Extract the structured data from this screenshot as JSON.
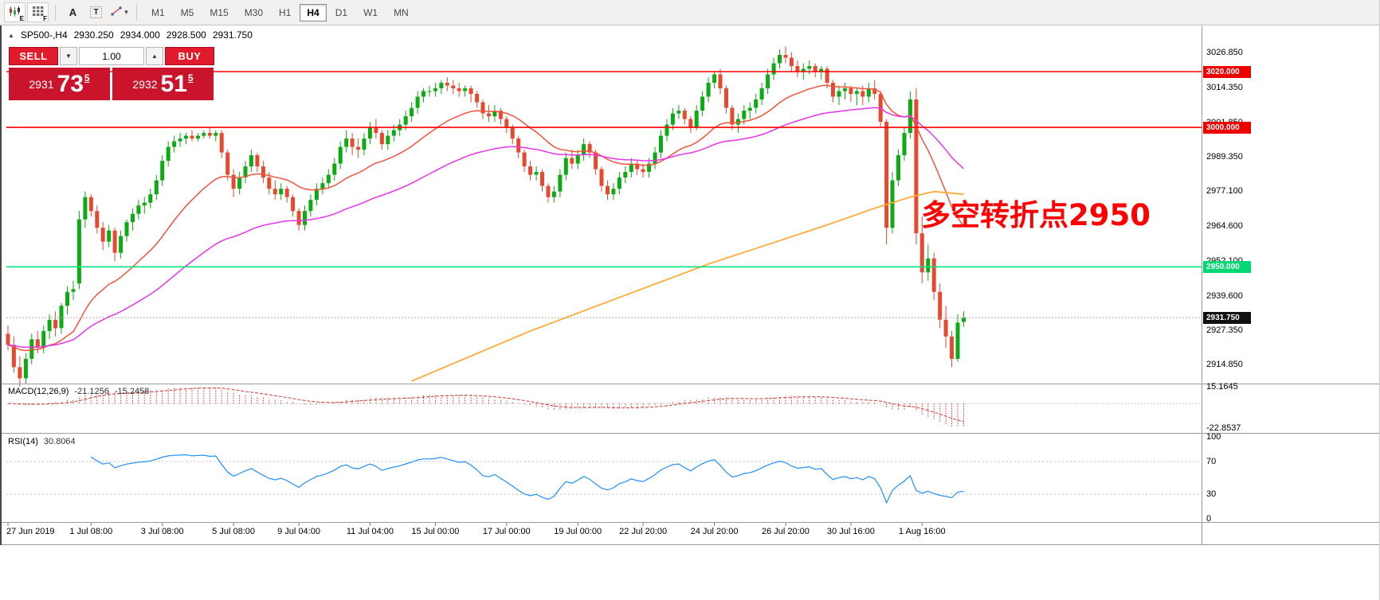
{
  "toolbar": {
    "ea_e": "E",
    "ea_f": "F",
    "label_tool": "A",
    "text_tool": "T",
    "timeframes": [
      {
        "label": "M1",
        "active": false
      },
      {
        "label": "M5",
        "active": false
      },
      {
        "label": "M15",
        "active": false
      },
      {
        "label": "M30",
        "active": false
      },
      {
        "label": "H1",
        "active": false
      },
      {
        "label": "H4",
        "active": true
      },
      {
        "label": "D1",
        "active": false
      },
      {
        "label": "W1",
        "active": false
      },
      {
        "label": "MN",
        "active": false
      }
    ]
  },
  "icons": {
    "marker_up": "▲",
    "caret_down": "▾",
    "caret_down_small": "▼",
    "caret_up_small": "▲"
  },
  "symbol_header": {
    "symbol": "SP500-,H4",
    "open": "2930.250",
    "high": "2934.000",
    "low": "2928.500",
    "close": "2931.750"
  },
  "trade_panel": {
    "sell_label": "SELL",
    "buy_label": "BUY",
    "volume": "1.00",
    "bid_prefix": "2931",
    "bid_big": "73",
    "bid_sup": "5",
    "ask_prefix": "2932",
    "ask_big": "51",
    "ask_sup": "5"
  },
  "chart_data": {
    "type": "candlestick",
    "symbol": "SP500-",
    "timeframe": "H4",
    "current_bar": {
      "open": "2930.250",
      "high": "2934.000",
      "low": "2928.500",
      "close": "2931.750"
    },
    "colors": {
      "up": "#0caa13",
      "down": "#e5492f"
    },
    "price_axis": {
      "labels": [
        [
          3026.85,
          "3026.850"
        ],
        [
          3014.35,
          "3014.350"
        ],
        [
          3001.85,
          "3001.850"
        ],
        [
          2989.35,
          "2989.350"
        ],
        [
          2977.1,
          "2977.100"
        ],
        [
          2964.6,
          "2964.600"
        ],
        [
          2952.1,
          "2952.100"
        ],
        [
          2939.6,
          "2939.600"
        ],
        [
          2927.35,
          "2927.350"
        ],
        [
          2914.85,
          "2914.850"
        ]
      ]
    },
    "levels": [
      {
        "price": 3020,
        "text": "3020.000",
        "line_color": "#ff0000",
        "tag_bg": "#ee0000",
        "tag_color": "#ffffff"
      },
      {
        "price": 3000,
        "text": "3000.000",
        "line_color": "#ff0000",
        "tag_bg": "#ee0000",
        "tag_color": "#ffffff"
      },
      {
        "price": 2950,
        "text": "2950.000",
        "line_color": "#00e27a",
        "tag_bg": "#00d973",
        "tag_color": "#ffffff"
      }
    ],
    "current_price": {
      "price": 2931.75,
      "text": "2931.750",
      "line_color": "#aaaaaa",
      "tag_bg": "#111111",
      "tag_color": "#ffffff"
    },
    "time_labels": [
      [
        0,
        "27 Jun 2019"
      ],
      [
        14,
        "1 Jul 08:00"
      ],
      [
        26,
        "3 Jul 08:00"
      ],
      [
        38,
        "5 Jul 08:00"
      ],
      [
        49,
        "9 Jul 04:00"
      ],
      [
        61,
        "11 Jul 04:00"
      ],
      [
        72,
        "15 Jul 00:00"
      ],
      [
        84,
        "17 Jul 00:00"
      ],
      [
        96,
        "19 Jul 00:00"
      ],
      [
        107,
        "22 Jul 20:00"
      ],
      [
        119,
        "24 Jul 20:00"
      ],
      [
        131,
        "26 Jul 20:00"
      ],
      [
        142,
        "30 Jul 16:00"
      ],
      [
        154,
        "1 Aug 16:00"
      ]
    ],
    "overlays": [
      {
        "name": "ma-fast",
        "type": "ema",
        "period": 21,
        "color": "#f4533a"
      },
      {
        "name": "ma-mid",
        "type": "ema",
        "period": 55,
        "color": "#e833e8"
      },
      {
        "name": "ma-slow",
        "type": "points",
        "color": "#ffaa33",
        "points": [
          [
            68,
            2909
          ],
          [
            78,
            2918
          ],
          [
            88,
            2927
          ],
          [
            98,
            2935
          ],
          [
            108,
            2943
          ],
          [
            118,
            2951
          ],
          [
            128,
            2958
          ],
          [
            138,
            2965
          ],
          [
            146,
            2971
          ],
          [
            152,
            2975
          ],
          [
            156,
            2977
          ],
          [
            161,
            2976
          ]
        ]
      }
    ],
    "macd": {
      "label": "MACD(12,26,9)",
      "fast": 12,
      "slow": 26,
      "signal": 9,
      "value_main": "-21.1256",
      "value_signal": "-15.2458",
      "axis": [
        [
          15.1645,
          "15.1645"
        ],
        [
          -22.8537,
          "-22.8537"
        ]
      ],
      "range": [
        -25,
        17
      ],
      "color": "#d23535"
    },
    "rsi": {
      "label": "RSI(14)",
      "period": 14,
      "value": "30.8064",
      "axis": [
        [
          100,
          "100"
        ],
        [
          70,
          "70"
        ],
        [
          30,
          "30"
        ],
        [
          0,
          "0"
        ]
      ],
      "levels": [
        70,
        30
      ],
      "color": "#1e90ff"
    },
    "annotation": {
      "text": "多空转折点2950",
      "color": "#ff0000"
    },
    "candles": [
      [
        2926,
        2929,
        2920,
        2922
      ],
      [
        2922,
        2925,
        2912,
        2914
      ],
      [
        2914,
        2918,
        2907,
        2910
      ],
      [
        2910,
        2919,
        2908,
        2917
      ],
      [
        2917,
        2926,
        2915,
        2924
      ],
      [
        2924,
        2927,
        2919,
        2921
      ],
      [
        2921,
        2929,
        2919,
        2927
      ],
      [
        2927,
        2933,
        2924,
        2931
      ],
      [
        2931,
        2934,
        2925,
        2928
      ],
      [
        2928,
        2937,
        2926,
        2936
      ],
      [
        2936,
        2943,
        2933,
        2941
      ],
      [
        2941,
        2945,
        2938,
        2942
      ],
      [
        2944,
        2970,
        2942,
        2967
      ],
      [
        2967,
        2977,
        2964,
        2975
      ],
      [
        2975,
        2976,
        2968,
        2970
      ],
      [
        2970,
        2972,
        2962,
        2964
      ],
      [
        2964,
        2966,
        2956,
        2959
      ],
      [
        2959,
        2965,
        2957,
        2963
      ],
      [
        2963,
        2964,
        2952,
        2955
      ],
      [
        2955,
        2963,
        2953,
        2961
      ],
      [
        2961,
        2967,
        2959,
        2966
      ],
      [
        2966,
        2971,
        2963,
        2969
      ],
      [
        2969,
        2974,
        2967,
        2972
      ],
      [
        2972,
        2975,
        2969,
        2973
      ],
      [
        2973,
        2978,
        2971,
        2976
      ],
      [
        2976,
        2983,
        2974,
        2981
      ],
      [
        2981,
        2990,
        2979,
        2988
      ],
      [
        2988,
        2995,
        2986,
        2993
      ],
      [
        2993,
        2997,
        2991,
        2995
      ],
      [
        2995,
        2998,
        2993,
        2996
      ],
      [
        2996,
        2998,
        2994,
        2997
      ],
      [
        2997,
        2999,
        2995,
        2996
      ],
      [
        2996,
        2998,
        2995,
        2997
      ],
      [
        2997,
        2999,
        2996,
        2998
      ],
      [
        2998,
        3000,
        2996,
        2997
      ],
      [
        2997,
        2999,
        2995,
        2998
      ],
      [
        2998,
        2999,
        2989,
        2991
      ],
      [
        2991,
        2992,
        2981,
        2983
      ],
      [
        2983,
        2985,
        2975,
        2978
      ],
      [
        2978,
        2984,
        2976,
        2982
      ],
      [
        2982,
        2988,
        2980,
        2986
      ],
      [
        2986,
        2992,
        2984,
        2990
      ],
      [
        2990,
        2991,
        2984,
        2986
      ],
      [
        2986,
        2988,
        2980,
        2982
      ],
      [
        2982,
        2984,
        2976,
        2978
      ],
      [
        2978,
        2981,
        2974,
        2976
      ],
      [
        2976,
        2980,
        2974,
        2978
      ],
      [
        2978,
        2979,
        2973,
        2975
      ],
      [
        2975,
        2976,
        2968,
        2970
      ],
      [
        2970,
        2971,
        2963,
        2965
      ],
      [
        2965,
        2972,
        2963,
        2970
      ],
      [
        2970,
        2976,
        2968,
        2974
      ],
      [
        2974,
        2980,
        2972,
        2978
      ],
      [
        2978,
        2982,
        2976,
        2980
      ],
      [
        2980,
        2985,
        2978,
        2983
      ],
      [
        2983,
        2989,
        2981,
        2987
      ],
      [
        2987,
        2995,
        2985,
        2993
      ],
      [
        2993,
        2999,
        2991,
        2996
      ],
      [
        2996,
        2998,
        2990,
        2993
      ],
      [
        2993,
        2996,
        2989,
        2992
      ],
      [
        2992,
        2998,
        2990,
        2996
      ],
      [
        2996,
        3002,
        2994,
        3000
      ],
      [
        3000,
        3003,
        2996,
        2998
      ],
      [
        2998,
        2999,
        2992,
        2994
      ],
      [
        2994,
        2999,
        2992,
        2997
      ],
      [
        2997,
        3001,
        2995,
        2999
      ],
      [
        2999,
        3003,
        2997,
        3001
      ],
      [
        3001,
        3006,
        2999,
        3004
      ],
      [
        3004,
        3009,
        3002,
        3007
      ],
      [
        3007,
        3013,
        3005,
        3011
      ],
      [
        3011,
        3014,
        3009,
        3013
      ],
      [
        3013,
        3015,
        3011,
        3013
      ],
      [
        3013,
        3016,
        3011,
        3014
      ],
      [
        3014,
        3017,
        3012,
        3016
      ],
      [
        3016,
        3018,
        3013,
        3015
      ],
      [
        3015,
        3017,
        3012,
        3014
      ],
      [
        3014,
        3016,
        3011,
        3013
      ],
      [
        3013,
        3015,
        3011,
        3014
      ],
      [
        3014,
        3015,
        3009,
        3012
      ],
      [
        3012,
        3013,
        3007,
        3009
      ],
      [
        3009,
        3010,
        3003,
        3005
      ],
      [
        3005,
        3008,
        3002,
        3004
      ],
      [
        3004,
        3008,
        3002,
        3006
      ],
      [
        3006,
        3007,
        3001,
        3003
      ],
      [
        3003,
        3004,
        2998,
        3000
      ],
      [
        3000,
        3001,
        2994,
        2996
      ],
      [
        2996,
        2997,
        2989,
        2991
      ],
      [
        2991,
        2992,
        2984,
        2986
      ],
      [
        2986,
        2988,
        2981,
        2983
      ],
      [
        2983,
        2986,
        2981,
        2984
      ],
      [
        2984,
        2985,
        2977,
        2979
      ],
      [
        2979,
        2980,
        2973,
        2975
      ],
      [
        2975,
        2979,
        2973,
        2977
      ],
      [
        2977,
        2985,
        2975,
        2983
      ],
      [
        2983,
        2991,
        2981,
        2989
      ],
      [
        2989,
        2992,
        2985,
        2987
      ],
      [
        2987,
        2992,
        2985,
        2990
      ],
      [
        2990,
        2996,
        2988,
        2994
      ],
      [
        2994,
        2995,
        2989,
        2991
      ],
      [
        2991,
        2992,
        2983,
        2985
      ],
      [
        2985,
        2986,
        2977,
        2979
      ],
      [
        2979,
        2981,
        2974,
        2976
      ],
      [
        2976,
        2980,
        2974,
        2978
      ],
      [
        2978,
        2984,
        2976,
        2982
      ],
      [
        2982,
        2986,
        2980,
        2984
      ],
      [
        2984,
        2989,
        2982,
        2987
      ],
      [
        2987,
        2988,
        2983,
        2985
      ],
      [
        2985,
        2987,
        2982,
        2984
      ],
      [
        2984,
        2989,
        2982,
        2987
      ],
      [
        2987,
        2993,
        2985,
        2991
      ],
      [
        2991,
        2999,
        2989,
        2997
      ],
      [
        2997,
        3003,
        2995,
        3001
      ],
      [
        3001,
        3007,
        2999,
        3005
      ],
      [
        3005,
        3008,
        3003,
        3006
      ],
      [
        3006,
        3007,
        3001,
        3003
      ],
      [
        3003,
        3004,
        2998,
        3000
      ],
      [
        3000,
        3008,
        2999,
        3006
      ],
      [
        3006,
        3013,
        3004,
        3011
      ],
      [
        3011,
        3018,
        3009,
        3016
      ],
      [
        3016,
        3020,
        3014,
        3019
      ],
      [
        3019,
        3021,
        3012,
        3014
      ],
      [
        3014,
        3015,
        3005,
        3007
      ],
      [
        3007,
        3008,
        2999,
        3001
      ],
      [
        3001,
        3005,
        2998,
        3003
      ],
      [
        3003,
        3008,
        3001,
        3006
      ],
      [
        3006,
        3009,
        3003,
        3007
      ],
      [
        3007,
        3012,
        3005,
        3010
      ],
      [
        3010,
        3016,
        3008,
        3014
      ],
      [
        3014,
        3021,
        3012,
        3019
      ],
      [
        3019,
        3025,
        3017,
        3023
      ],
      [
        3023,
        3028,
        3021,
        3026
      ],
      [
        3026,
        3029,
        3023,
        3025
      ],
      [
        3025,
        3027,
        3020,
        3022
      ],
      [
        3022,
        3024,
        3018,
        3020
      ],
      [
        3020,
        3023,
        3017,
        3021
      ],
      [
        3021,
        3024,
        3019,
        3022
      ],
      [
        3022,
        3023,
        3018,
        3020
      ],
      [
        3020,
        3022,
        3017,
        3021
      ],
      [
        3021,
        3022,
        3014,
        3016
      ],
      [
        3016,
        3017,
        3009,
        3011
      ],
      [
        3011,
        3015,
        3008,
        3013
      ],
      [
        3013,
        3016,
        3010,
        3014
      ],
      [
        3014,
        3015,
        3009,
        3012
      ],
      [
        3012,
        3014,
        3008,
        3013
      ],
      [
        3013,
        3015,
        3008,
        3011
      ],
      [
        3011,
        3016,
        3009,
        3014
      ],
      [
        3014,
        3017,
        3010,
        3012
      ],
      [
        3012,
        3013,
        3000,
        3002
      ],
      [
        3002,
        3003,
        2958,
        2964
      ],
      [
        2964,
        2984,
        2962,
        2981
      ],
      [
        2981,
        2992,
        2979,
        2990
      ],
      [
        2990,
        3000,
        2988,
        2998
      ],
      [
        2998,
        3013,
        2996,
        3010
      ],
      [
        3010,
        3014,
        2958,
        2962
      ],
      [
        2962,
        2968,
        2944,
        2948
      ],
      [
        2948,
        2958,
        2945,
        2953
      ],
      [
        2953,
        2955,
        2938,
        2941
      ],
      [
        2941,
        2944,
        2928,
        2931
      ],
      [
        2931,
        2936,
        2921,
        2925
      ],
      [
        2925,
        2927,
        2914,
        2917
      ],
      [
        2917,
        2933,
        2916,
        2930
      ],
      [
        2930.25,
        2934,
        2928.5,
        2931.75
      ]
    ]
  }
}
